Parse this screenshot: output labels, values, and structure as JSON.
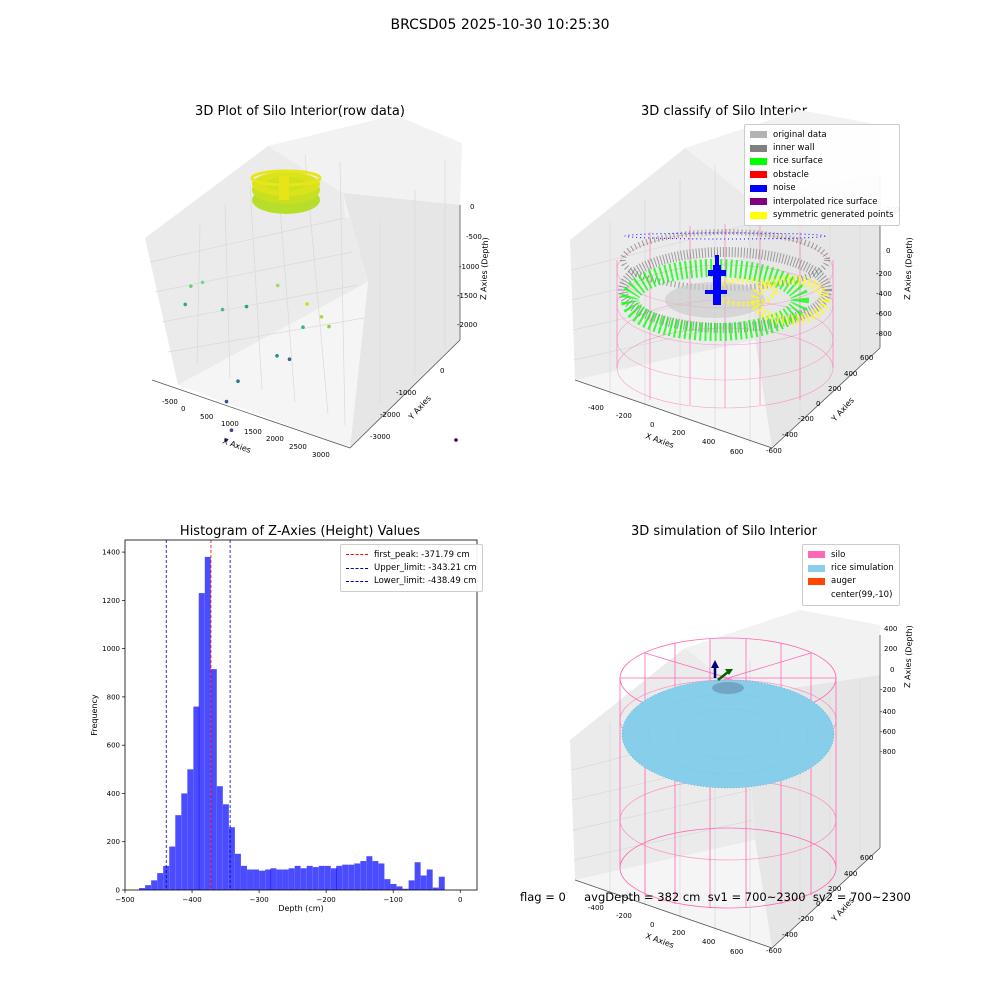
{
  "figure_title": "BRCSD05 2025-10-30 10:25:30",
  "footer_text": "flag = 0     avgDepth = 382 cm  sv1 = 700~2300  sv2 = 700~2300",
  "chart_data": [
    {
      "type": "scatter3d",
      "title": "3D Plot of Silo Interior(row data)",
      "xlabel": "X Axies",
      "ylabel": "Y Axies",
      "zlabel": "Z Axies (Depth)",
      "xticks": [
        "-500",
        "0",
        "500",
        "1000",
        "1500",
        "2000",
        "2500",
        "3000"
      ],
      "yticks": [
        "0",
        "-1000",
        "-2000",
        "-3000"
      ],
      "zticks": [
        "0",
        "-500",
        "-1000",
        "-1500",
        "-2000"
      ],
      "colormap": "viridis",
      "outlier_points": [
        {
          "x": 100,
          "y": -200,
          "z": -600,
          "c": "#7fd48a"
        },
        {
          "x": -80,
          "y": -150,
          "z": -700,
          "c": "#6cce78"
        },
        {
          "x": 400,
          "y": -300,
          "z": -900,
          "c": "#4fb88a"
        },
        {
          "x": -150,
          "y": -100,
          "z": -1000,
          "c": "#3aa58c"
        },
        {
          "x": 900,
          "y": -200,
          "z": -900,
          "c": "#22a884"
        },
        {
          "x": 1500,
          "y": -150,
          "z": -600,
          "c": "#9ddb63"
        },
        {
          "x": 2000,
          "y": -200,
          "z": -800,
          "c": "#bddf26"
        },
        {
          "x": 2200,
          "y": -300,
          "z": -900,
          "c": "#aadc32"
        },
        {
          "x": 2400,
          "y": -200,
          "z": -1100,
          "c": "#86d549"
        },
        {
          "x": 1300,
          "y": -800,
          "z": -1200,
          "c": "#31688e"
        },
        {
          "x": 300,
          "y": -900,
          "z": -1500,
          "c": "#2a788e"
        },
        {
          "x": -100,
          "y": -1200,
          "z": -1600,
          "c": "#3b528b"
        },
        {
          "x": -200,
          "y": -1500,
          "z": -1800,
          "c": "#414487"
        },
        {
          "x": -300,
          "y": -1500,
          "z": -2100,
          "c": "#482878"
        },
        {
          "x": 2800,
          "y": -3200,
          "z": -1000,
          "c": "#440154"
        },
        {
          "x": 1200,
          "y": -600,
          "z": -1300,
          "c": "#21918c"
        },
        {
          "x": 1800,
          "y": -400,
          "z": -1000,
          "c": "#35b779"
        }
      ]
    },
    {
      "type": "scatter3d",
      "title": "3D classify of Silo Interior",
      "xlabel": "X Axies",
      "ylabel": "Y Axies",
      "zlabel": "Z Axies (Depth)",
      "xticks": [
        "-400",
        "-200",
        "0",
        "200",
        "400",
        "600"
      ],
      "yticks": [
        "600",
        "400",
        "200",
        "0",
        "-200",
        "-400",
        "-600"
      ],
      "zticks": [
        "200",
        "0",
        "-200",
        "-400",
        "-600",
        "-800"
      ],
      "legend": [
        {
          "label": "original data",
          "color": "#b3b3b3"
        },
        {
          "label": "inner wall",
          "color": "#808080"
        },
        {
          "label": "rice surface",
          "color": "#00ff00"
        },
        {
          "label": "obstacle",
          "color": "#ff0000"
        },
        {
          "label": "noise",
          "color": "#0000ff"
        },
        {
          "label": "interpolated rice surface",
          "color": "#800080"
        },
        {
          "label": "symmetric generated points",
          "color": "#ffff00"
        }
      ]
    },
    {
      "type": "bar",
      "title": "Histogram of Z-Axies (Height) Values",
      "xlabel": "Depth (cm)",
      "ylabel": "Frequency",
      "xlim": [
        -500,
        25
      ],
      "ylim": [
        0,
        1450
      ],
      "xticks": [
        -500,
        -400,
        -300,
        -200,
        -100,
        0
      ],
      "yticks": [
        0,
        200,
        400,
        600,
        800,
        1000,
        1200,
        1400
      ],
      "bar_color": "#0000ff",
      "bin_width": 8.9,
      "bins": [
        {
          "x": -479,
          "v": 8
        },
        {
          "x": -470,
          "v": 20
        },
        {
          "x": -461,
          "v": 40
        },
        {
          "x": -452,
          "v": 70
        },
        {
          "x": -443,
          "v": 100
        },
        {
          "x": -434,
          "v": 180
        },
        {
          "x": -425,
          "v": 310
        },
        {
          "x": -416,
          "v": 400
        },
        {
          "x": -407,
          "v": 500
        },
        {
          "x": -398,
          "v": 760
        },
        {
          "x": -390,
          "v": 1230
        },
        {
          "x": -381,
          "v": 1380
        },
        {
          "x": -372,
          "v": 915
        },
        {
          "x": -363,
          "v": 430
        },
        {
          "x": -354,
          "v": 355
        },
        {
          "x": -345,
          "v": 260
        },
        {
          "x": -336,
          "v": 150
        },
        {
          "x": -327,
          "v": 100
        },
        {
          "x": -318,
          "v": 85
        },
        {
          "x": -309,
          "v": 85
        },
        {
          "x": -300,
          "v": 80
        },
        {
          "x": -291,
          "v": 85
        },
        {
          "x": -283,
          "v": 90
        },
        {
          "x": -274,
          "v": 85
        },
        {
          "x": -265,
          "v": 85
        },
        {
          "x": -256,
          "v": 90
        },
        {
          "x": -247,
          "v": 100
        },
        {
          "x": -238,
          "v": 90
        },
        {
          "x": -229,
          "v": 100
        },
        {
          "x": -220,
          "v": 95
        },
        {
          "x": -211,
          "v": 100
        },
        {
          "x": -202,
          "v": 100
        },
        {
          "x": -193,
          "v": 90
        },
        {
          "x": -185,
          "v": 100
        },
        {
          "x": -176,
          "v": 105
        },
        {
          "x": -167,
          "v": 105
        },
        {
          "x": -158,
          "v": 110
        },
        {
          "x": -149,
          "v": 120
        },
        {
          "x": -140,
          "v": 140
        },
        {
          "x": -131,
          "v": 120
        },
        {
          "x": -122,
          "v": 110
        },
        {
          "x": -113,
          "v": 45
        },
        {
          "x": -104,
          "v": 25
        },
        {
          "x": -95,
          "v": 15
        },
        {
          "x": -86,
          "v": 5
        },
        {
          "x": -77,
          "v": 40
        },
        {
          "x": -68,
          "v": 115
        },
        {
          "x": -59,
          "v": 60
        },
        {
          "x": -50,
          "v": 85
        },
        {
          "x": -41,
          "v": 10
        },
        {
          "x": -32,
          "v": 55
        }
      ],
      "lines": [
        {
          "label": "first_peak: -371.79 cm",
          "x": -371.79,
          "color": "#ff0000"
        },
        {
          "label": "Upper_limit: -343.21 cm",
          "x": -343.21,
          "color": "#0000aa"
        },
        {
          "label": "Lower_limit: -438.49 cm",
          "x": -438.49,
          "color": "#0000aa"
        }
      ]
    },
    {
      "type": "surface3d",
      "title": "3D simulation of Silo Interior",
      "xlabel": "X Axies",
      "ylabel": "Y Axies",
      "zlabel": "Z Axies (Depth)",
      "xticks": [
        "-400",
        "-200",
        "0",
        "200",
        "400",
        "600"
      ],
      "yticks": [
        "600",
        "400",
        "200",
        "0",
        "-200",
        "-400",
        "-600"
      ],
      "zticks": [
        "400",
        "200",
        "0",
        "-200",
        "-400",
        "-600",
        "-800"
      ],
      "legend": [
        {
          "label": "silo",
          "color": "#ff69b4"
        },
        {
          "label": "rice simulation",
          "color": "#87ceeb"
        },
        {
          "label": "auger",
          "color": "#ff4500"
        },
        {
          "label": "center(99,-10)",
          "color": ""
        }
      ]
    }
  ]
}
